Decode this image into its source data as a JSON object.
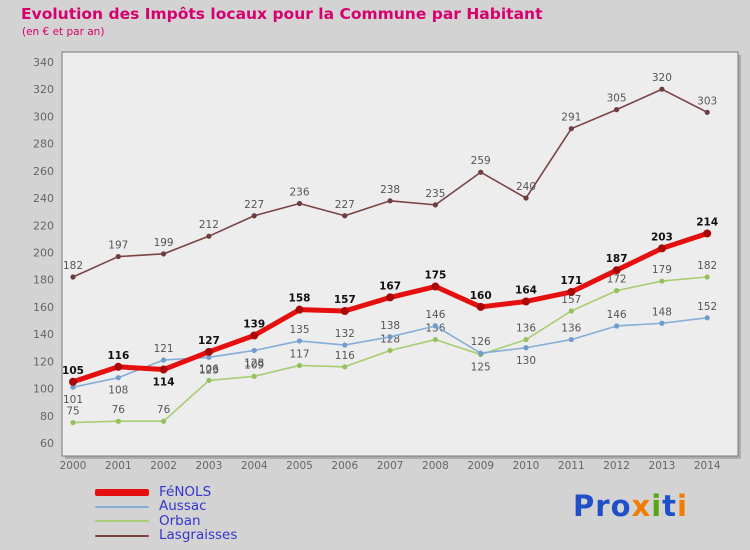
{
  "chart_data": {
    "type": "line",
    "title": "Evolution des Impôts locaux pour la Commune par Habitant",
    "subtitle": "(en € et par an)",
    "title_color": "#d6006e",
    "xlabel": "",
    "ylabel": "",
    "ylim": [
      60,
      340
    ],
    "ytick_step": 20,
    "grid": false,
    "legend_position": "bottom-left",
    "x": [
      "2000",
      "2001",
      "2002",
      "2003",
      "2004",
      "2005",
      "2006",
      "2007",
      "2008",
      "2009",
      "2010",
      "2011",
      "2012",
      "2013",
      "2014"
    ],
    "series": [
      {
        "name": "FéNOLS",
        "color": "#e60f0f",
        "dot_color": "#a80808",
        "dot_radius": 4,
        "line_width": 5,
        "legend_swatch_h": 7,
        "label_color": "#111111",
        "label_bold": true,
        "values": [
          105,
          116,
          114,
          127,
          139,
          158,
          157,
          167,
          175,
          160,
          164,
          171,
          187,
          203,
          214
        ],
        "label_pos": [
          "above",
          "above",
          "below",
          "above",
          "above",
          "above",
          "above",
          "above",
          "above",
          "above",
          "above",
          "above",
          "above",
          "above",
          "above"
        ]
      },
      {
        "name": "Aussac",
        "color": "#85aed6",
        "dot_color": "#6f9ccc",
        "dot_radius": 2.6,
        "line_width": 1.6,
        "legend_swatch_h": 2,
        "label_color": "#555555",
        "label_bold": false,
        "values": [
          101,
          108,
          121,
          123,
          128,
          135,
          132,
          138,
          146,
          126,
          130,
          136,
          146,
          148,
          152
        ],
        "label_pos": [
          "below",
          "below",
          "above",
          "below",
          "below",
          "above",
          "above",
          "above",
          "above",
          "above",
          "below",
          "above",
          "above",
          "above",
          "above"
        ]
      },
      {
        "name": "Orban",
        "color": "#a8cd72",
        "dot_color": "#96c05e",
        "dot_radius": 2.6,
        "line_width": 1.6,
        "legend_swatch_h": 2,
        "label_color": "#555555",
        "label_bold": false,
        "values": [
          75,
          76,
          76,
          106,
          109,
          117,
          116,
          128,
          136,
          125,
          136,
          157,
          172,
          179,
          182
        ],
        "label_pos": [
          "above",
          "above",
          "above",
          "above",
          "above",
          "above",
          "above",
          "above",
          "above",
          "below",
          "above",
          "above",
          "above",
          "above",
          "above"
        ]
      },
      {
        "name": "Lasgraisses",
        "color": "#7a4343",
        "dot_color": "#6f3d3d",
        "dot_radius": 2.6,
        "line_width": 1.6,
        "legend_swatch_h": 2,
        "label_color": "#555555",
        "label_bold": false,
        "values": [
          182,
          197,
          199,
          212,
          227,
          236,
          227,
          238,
          235,
          259,
          240,
          291,
          305,
          320,
          303
        ],
        "label_pos": [
          "above",
          "above",
          "above",
          "above",
          "above",
          "above",
          "above",
          "above",
          "above",
          "above",
          "above",
          "above",
          "above",
          "above",
          "above"
        ]
      }
    ]
  },
  "legend": {
    "text_color": "#3535cf"
  },
  "logo": {
    "letters": [
      {
        "ch": "P",
        "color": "#2050c8"
      },
      {
        "ch": "r",
        "color": "#2050c8"
      },
      {
        "ch": "o",
        "color": "#2050c8"
      },
      {
        "ch": "x",
        "color": "#f07d00"
      },
      {
        "ch": "i",
        "color": "#58a618"
      },
      {
        "ch": "t",
        "color": "#2050c8"
      },
      {
        "ch": "i",
        "color": "#f07d00"
      }
    ]
  }
}
